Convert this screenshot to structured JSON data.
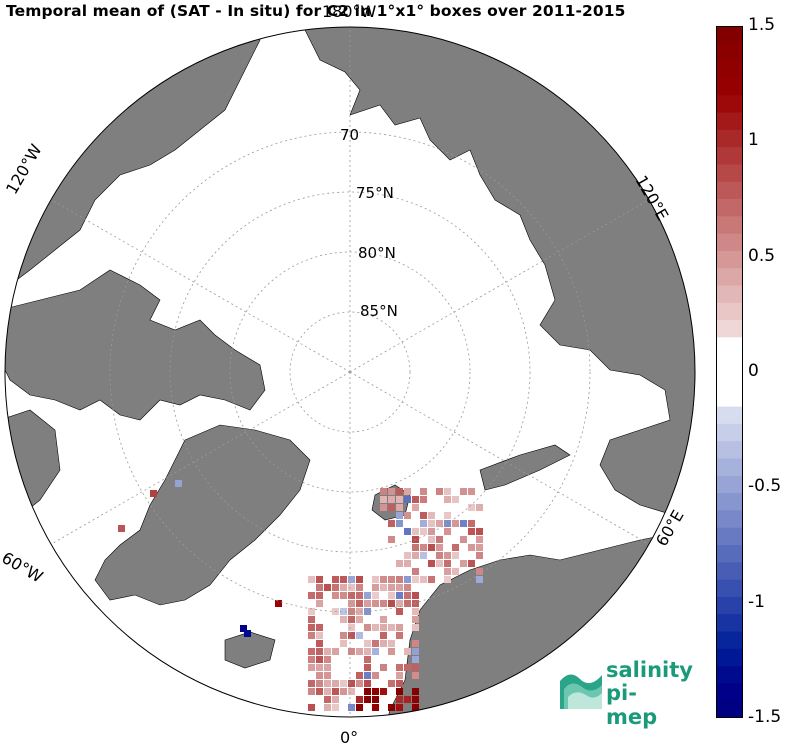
{
  "title": "Temporal mean of (SAT - In situ) for C2 in 1°x1° boxes over 2011-2015",
  "map": {
    "projection": "North polar stereographic",
    "lat_labels": [
      "70",
      "75°N",
      "80°N",
      "85°N"
    ],
    "lon_labels": {
      "top": "180°W",
      "left_upper": "120°W",
      "left_lower": "60°W",
      "bottom": "0°",
      "right_lower": "60°E",
      "right_upper": "120°E"
    },
    "colors": {
      "land": "#7f7f7f",
      "ocean": "#ffffff",
      "outline": "#000000"
    }
  },
  "colorbar": {
    "min": -1.5,
    "max": 1.5,
    "ticks": [
      "1.5",
      "1",
      "0.5",
      "0",
      "-0.5",
      "-1",
      "-1.5"
    ],
    "tick_values": [
      1.5,
      1,
      0.5,
      0,
      -0.5,
      -1,
      -1.5
    ],
    "colormap": "blue-white-red",
    "high_color": "#800000",
    "low_color": "#00007f"
  },
  "logo": {
    "line1": "salinity",
    "line2": "pi-mep",
    "color": "#1a9a7a"
  }
}
